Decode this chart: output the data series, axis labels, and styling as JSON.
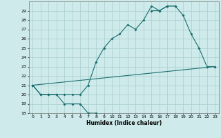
{
  "xlabel": "Humidex (Indice chaleur)",
  "xlim": [
    -0.5,
    23.5
  ],
  "ylim": [
    18,
    30
  ],
  "xticks": [
    0,
    1,
    2,
    3,
    4,
    5,
    6,
    7,
    8,
    9,
    10,
    11,
    12,
    13,
    14,
    15,
    16,
    17,
    18,
    19,
    20,
    21,
    22,
    23
  ],
  "yticks": [
    18,
    19,
    20,
    21,
    22,
    23,
    24,
    25,
    26,
    27,
    28,
    29
  ],
  "background_color": "#ceeaea",
  "grid_color": "#aacece",
  "line_color": "#1a6e6e",
  "series": [
    {
      "x": [
        0,
        1,
        2,
        3,
        4,
        5,
        6,
        7,
        8
      ],
      "y": [
        21,
        20,
        20,
        20,
        19,
        19,
        19,
        18,
        18
      ]
    },
    {
      "x": [
        0,
        1,
        2,
        3,
        4,
        5,
        6,
        7,
        8,
        9,
        10,
        11,
        12,
        13,
        14,
        15,
        16,
        17,
        18
      ],
      "y": [
        21,
        20,
        20,
        20,
        20,
        20,
        20,
        21,
        23.5,
        25,
        26,
        26.5,
        27.5,
        27,
        28,
        29.5,
        29,
        29.5,
        29.5
      ]
    },
    {
      "x": [
        15,
        16,
        17,
        18,
        19,
        20,
        21,
        22,
        23
      ],
      "y": [
        29,
        29,
        29.5,
        29.5,
        28.5,
        26.5,
        25,
        23,
        23
      ]
    },
    {
      "x": [
        0,
        23
      ],
      "y": [
        21,
        23
      ]
    }
  ]
}
